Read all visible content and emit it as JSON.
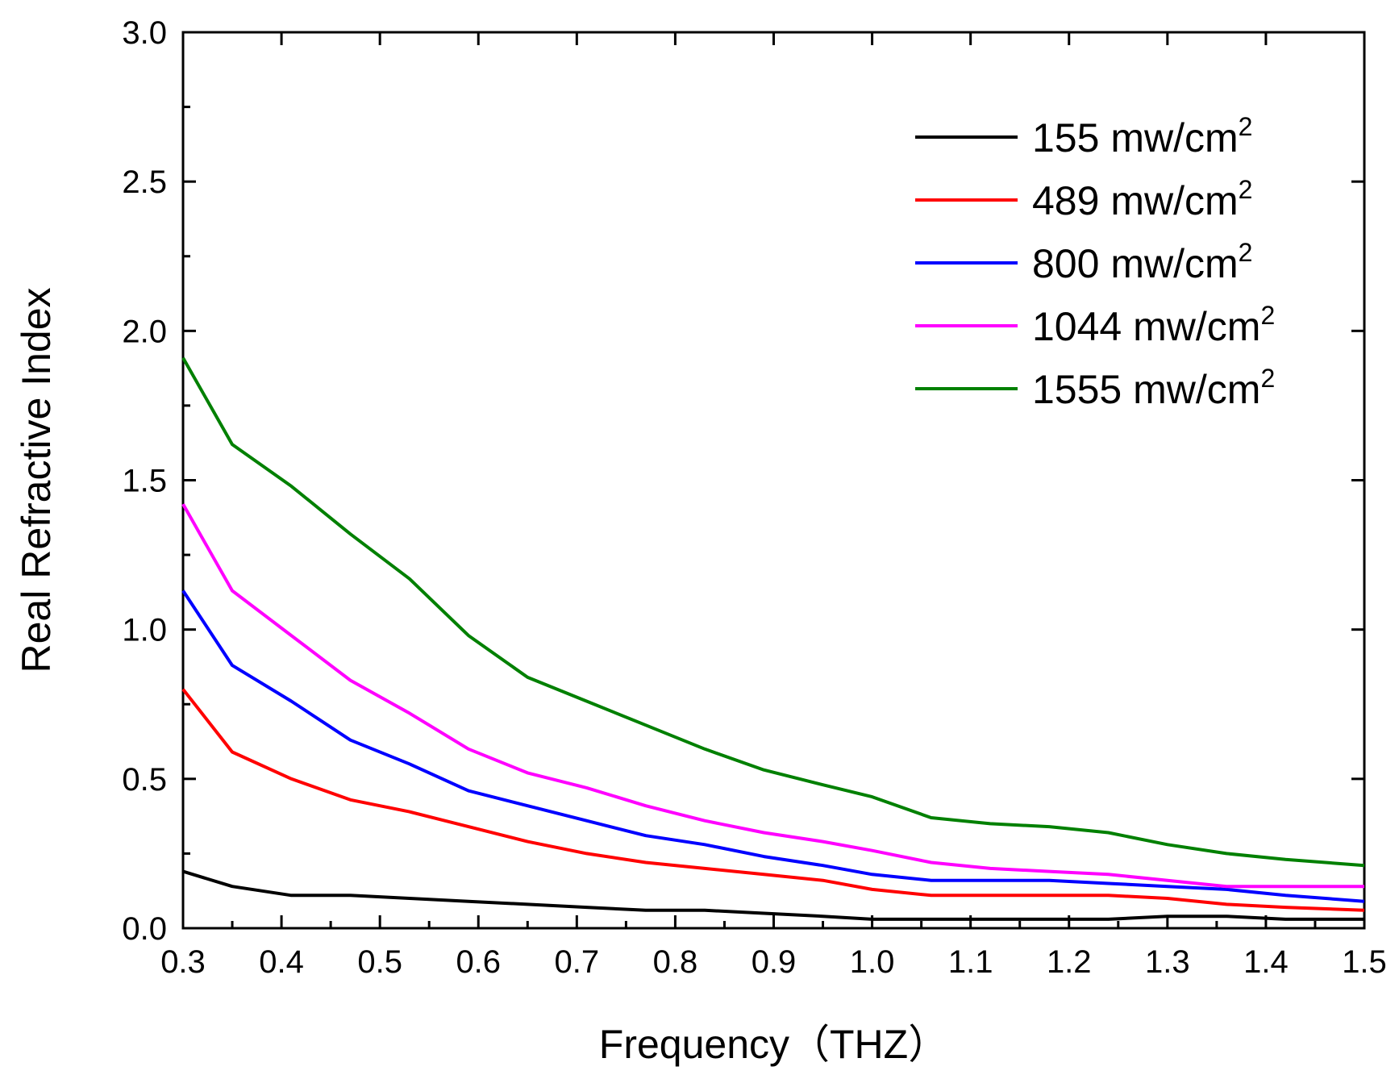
{
  "chart_data": {
    "type": "line",
    "title": "",
    "xlabel": "Frequency（THZ）",
    "ylabel": "Real Refractive Index",
    "xlim": [
      0.3,
      1.5
    ],
    "ylim": [
      0.0,
      3.0
    ],
    "x_ticks": [
      "0.3",
      "0.4",
      "0.5",
      "0.6",
      "0.7",
      "0.8",
      "0.9",
      "1.0",
      "1.1",
      "1.2",
      "1.3",
      "1.4",
      "1.5"
    ],
    "y_ticks": [
      "0.0",
      "0.5",
      "1.0",
      "1.5",
      "2.0",
      "2.5",
      "3.0"
    ],
    "grid": false,
    "legend_position": "top-right",
    "series": [
      {
        "name": "155 mw/cm",
        "superscript": "2",
        "color": "#000000",
        "x": [
          0.3,
          0.35,
          0.41,
          0.47,
          0.53,
          0.59,
          0.65,
          0.71,
          0.77,
          0.83,
          0.89,
          0.95,
          1.0,
          1.06,
          1.12,
          1.18,
          1.24,
          1.3,
          1.36,
          1.42,
          1.5
        ],
        "values": [
          0.19,
          0.14,
          0.11,
          0.11,
          0.1,
          0.09,
          0.08,
          0.07,
          0.06,
          0.06,
          0.05,
          0.04,
          0.03,
          0.03,
          0.03,
          0.03,
          0.03,
          0.04,
          0.04,
          0.03,
          0.03
        ]
      },
      {
        "name": "489 mw/cm",
        "superscript": "2",
        "color": "#ff0000",
        "x": [
          0.3,
          0.35,
          0.41,
          0.47,
          0.53,
          0.59,
          0.65,
          0.71,
          0.77,
          0.83,
          0.89,
          0.95,
          1.0,
          1.06,
          1.12,
          1.18,
          1.24,
          1.3,
          1.36,
          1.42,
          1.5
        ],
        "values": [
          0.8,
          0.59,
          0.5,
          0.43,
          0.39,
          0.34,
          0.29,
          0.25,
          0.22,
          0.2,
          0.18,
          0.16,
          0.13,
          0.11,
          0.11,
          0.11,
          0.11,
          0.1,
          0.08,
          0.07,
          0.06
        ]
      },
      {
        "name": "800 mw/cm",
        "superscript": "2",
        "color": "#0000ff",
        "x": [
          0.3,
          0.35,
          0.41,
          0.47,
          0.53,
          0.59,
          0.65,
          0.71,
          0.77,
          0.83,
          0.89,
          0.95,
          1.0,
          1.06,
          1.12,
          1.18,
          1.24,
          1.3,
          1.36,
          1.42,
          1.5
        ],
        "values": [
          1.13,
          0.88,
          0.76,
          0.63,
          0.55,
          0.46,
          0.41,
          0.36,
          0.31,
          0.28,
          0.24,
          0.21,
          0.18,
          0.16,
          0.16,
          0.16,
          0.15,
          0.14,
          0.13,
          0.11,
          0.09
        ]
      },
      {
        "name": "1044 mw/cm",
        "superscript": "2",
        "color": "#ff00ff",
        "x": [
          0.3,
          0.35,
          0.41,
          0.47,
          0.53,
          0.59,
          0.65,
          0.71,
          0.77,
          0.83,
          0.89,
          0.95,
          1.0,
          1.06,
          1.12,
          1.18,
          1.24,
          1.3,
          1.36,
          1.42,
          1.5
        ],
        "values": [
          1.42,
          1.13,
          0.98,
          0.83,
          0.72,
          0.6,
          0.52,
          0.47,
          0.41,
          0.36,
          0.32,
          0.29,
          0.26,
          0.22,
          0.2,
          0.19,
          0.18,
          0.16,
          0.14,
          0.14,
          0.14
        ]
      },
      {
        "name": "1555 mw/cm",
        "superscript": "2",
        "color": "#008000",
        "x": [
          0.3,
          0.35,
          0.41,
          0.47,
          0.53,
          0.59,
          0.65,
          0.71,
          0.77,
          0.83,
          0.89,
          0.95,
          1.0,
          1.06,
          1.12,
          1.18,
          1.24,
          1.3,
          1.36,
          1.42,
          1.5
        ],
        "values": [
          1.91,
          1.62,
          1.48,
          1.32,
          1.17,
          0.98,
          0.84,
          0.76,
          0.68,
          0.6,
          0.53,
          0.48,
          0.44,
          0.37,
          0.35,
          0.34,
          0.32,
          0.28,
          0.25,
          0.23,
          0.21
        ]
      }
    ]
  }
}
